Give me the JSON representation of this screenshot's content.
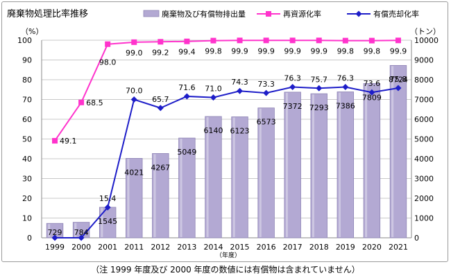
{
  "chart_data": {
    "type": "bar+line",
    "title": "廃棄物処理比率推移",
    "categories": [
      "1999",
      "2000",
      "2001",
      "2011",
      "2012",
      "2013",
      "2014",
      "2015",
      "2016",
      "2017",
      "2018",
      "2019",
      "2020",
      "2021"
    ],
    "xlabel": "（年度）",
    "y_left": {
      "unit": "（%）",
      "range": [
        0,
        100
      ],
      "step": 10
    },
    "y_right": {
      "unit": "（トン）",
      "range": [
        0,
        10000
      ],
      "step": 1000
    },
    "grid": true,
    "legend_position": "top",
    "series": [
      {
        "name": "廃棄物及び有償物排出量",
        "kind": "bar",
        "axis": "right",
        "color": "#b3a9d3",
        "values": [
          729,
          784,
          1545,
          4021,
          4267,
          5049,
          6140,
          6123,
          6573,
          7372,
          7293,
          7386,
          7809,
          8724
        ]
      },
      {
        "name": "再資源化率",
        "kind": "line",
        "axis": "left",
        "color": "#ff33cc",
        "marker": "square",
        "values": [
          49.1,
          68.5,
          98.0,
          99.0,
          99.2,
          99.4,
          99.8,
          99.9,
          99.9,
          99.9,
          99.9,
          99.8,
          99.8,
          99.9
        ]
      },
      {
        "name": "有償売却化率",
        "kind": "line",
        "axis": "left",
        "color": "#1d1dc8",
        "marker": "diamond",
        "values": [
          0,
          0,
          15.4,
          70.0,
          65.7,
          71.6,
          71.0,
          74.3,
          73.3,
          76.3,
          75.7,
          76.3,
          73.6,
          75.8
        ],
        "labels": [
          "",
          "",
          "15.4",
          "70.0",
          "65.7",
          "71.6",
          "71.0",
          "74.3",
          "73.3",
          "76.3",
          "75.7",
          "76.3",
          "73.6",
          "75.8"
        ]
      }
    ]
  },
  "footnote": "（注 1999 年度及び 2000 年度の数値には有償物は含まれていません）"
}
